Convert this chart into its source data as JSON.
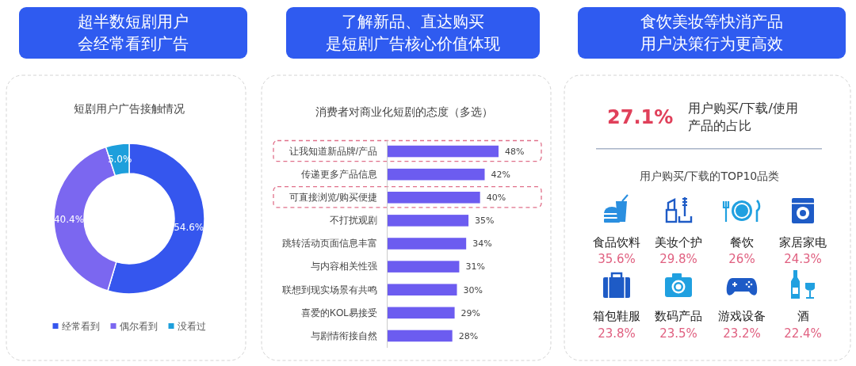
{
  "chart_data": [
    {
      "type": "donut",
      "title": "超半数短剧用户会经常看到广告",
      "subtitle": "短剧用户广告接触情况",
      "categories": [
        "经常看到",
        "偶尔看到",
        "没看过"
      ],
      "values": [
        54.6,
        40.4,
        5.0
      ],
      "colors": [
        "#3556ee",
        "#7b67f0",
        "#1d9fdc"
      ],
      "value_labels": [
        "54.6%",
        "40.4%",
        "5.0%"
      ],
      "legend": "bottom"
    },
    {
      "type": "bar",
      "orientation": "horizontal",
      "title": "了解新品、直达购买是短剧广告核心价值体现",
      "subtitle": "消费者对商业化短剧的态度（多选）",
      "categories": [
        "让我知道新品牌/产品",
        "传递更多产品信息",
        "可直接浏览/购买便捷",
        "不打扰观剧",
        "跳转活动页面信息丰富",
        "与内容相关性强",
        "联想到现实场景有共鸣",
        "喜爱的KOL易接受",
        "与剧情衔接自然"
      ],
      "values": [
        48,
        42,
        40,
        35,
        34,
        31,
        30,
        29,
        28
      ],
      "color": "#6c5cf0",
      "value_labels": [
        "48%",
        "42%",
        "40%",
        "35%",
        "34%",
        "31%",
        "30%",
        "29%",
        "28%"
      ]
    },
    {
      "type": "other",
      "title": "食饮美妆等快消产品用户决策行为更高效",
      "subtitle": "用户购买/下载的TOP10品类",
      "annotations": [
        "27.1%",
        "用户购买/下载/使用产品的占比"
      ],
      "categories": [
        "食品饮料",
        "美妆个护",
        "餐饮",
        "家居家电",
        "箱包鞋服",
        "数码产品",
        "游戏设备",
        "酒"
      ],
      "value_labels": [
        "35.6%",
        "29.8%",
        "26%",
        "24.3%",
        "23.8%",
        "23.5%",
        "23.2%",
        "22.4%"
      ]
    }
  ]
}
